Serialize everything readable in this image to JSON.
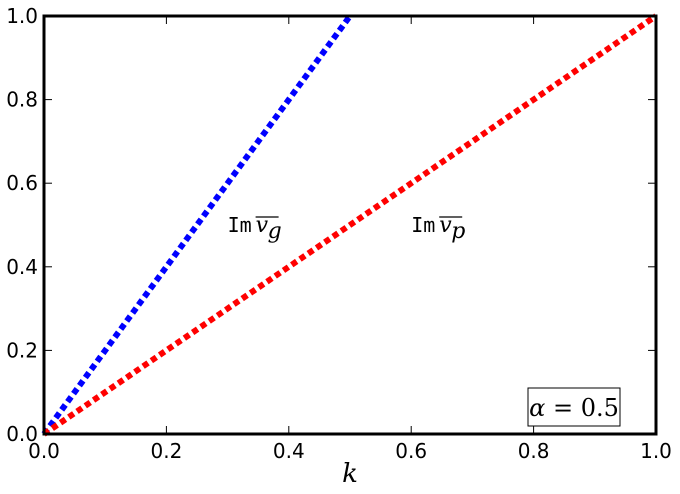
{
  "chart_data": {
    "type": "line",
    "xlabel": "k",
    "ylabel": "",
    "xlim": [
      0.0,
      1.0
    ],
    "ylim": [
      0.0,
      1.0
    ],
    "xticks": [
      "0.0",
      "0.2",
      "0.4",
      "0.6",
      "0.8",
      "1.0"
    ],
    "yticks": [
      "0.0",
      "0.2",
      "0.4",
      "0.6",
      "0.8",
      "1.0"
    ],
    "grid": false,
    "series": [
      {
        "x": [
          0.0,
          0.5
        ],
        "y": [
          0.0,
          1.0
        ],
        "color": "#0000ff",
        "style": "dotted"
      },
      {
        "x": [
          0.0,
          1.0
        ],
        "y": [
          0.0,
          1.0
        ],
        "color": "#ff0000",
        "style": "dotted"
      }
    ],
    "annotations": [
      {
        "prefix": "Im",
        "symbol": "v",
        "subscript": "g",
        "x": 0.3,
        "y": 0.5
      },
      {
        "prefix": "Im",
        "symbol": "v",
        "subscript": "p",
        "x": 0.6,
        "y": 0.5
      }
    ],
    "textbox": {
      "text": "α = 0.5",
      "symbol": "α",
      "value": "0.5",
      "location": "bottom-right"
    }
  }
}
